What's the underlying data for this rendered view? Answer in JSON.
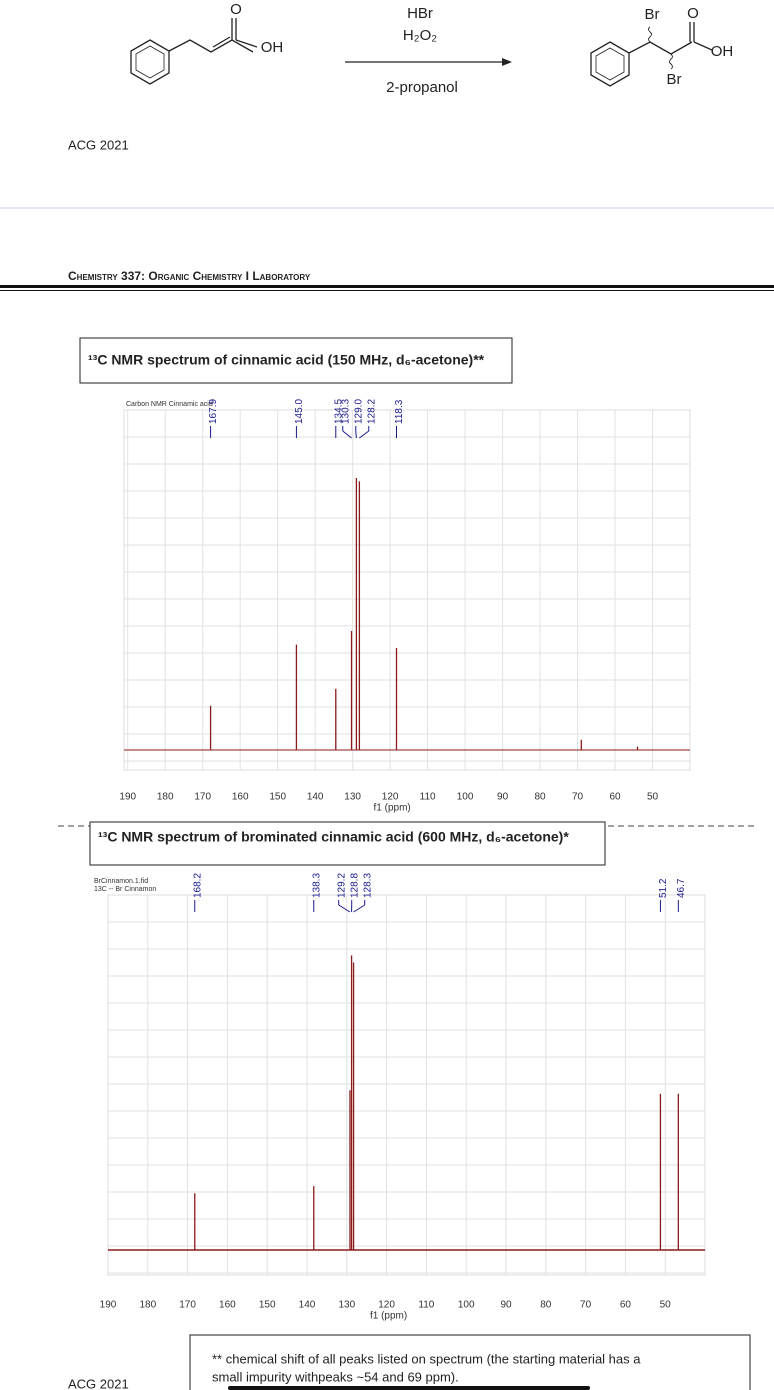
{
  "scheme": {
    "reactant_o": "O",
    "reactant_oh": "OH",
    "reagent_1": "HBr",
    "reagent_2": "H₂O₂",
    "solvent": "2-propanol",
    "product_br_1": "Br",
    "product_o": "O",
    "product_oh": "OH",
    "product_br_2": "Br"
  },
  "header": {
    "stamp": "ACG 2021",
    "course": "Chemistry 337: Organic Chemistry I Laboratory"
  },
  "spectra": [
    {
      "caption": "¹³C NMR spectrum of cinnamic acid (150 MHz, d₆-acetone)**",
      "name_lines": [
        "Carbon NMR Cinnamic acid"
      ],
      "xlabel": "f1 (ppm)",
      "xlim": [
        191,
        40
      ],
      "ylim": [
        0,
        100
      ],
      "xticks": [
        190,
        180,
        170,
        160,
        150,
        140,
        130,
        120,
        110,
        100,
        90,
        80,
        70,
        60,
        50
      ],
      "color": "#8b1a1a",
      "peaks": [
        {
          "ppm": 167.9,
          "label": "167.9",
          "height": 13
        },
        {
          "ppm": 145.0,
          "label": "145.0",
          "height": 31
        },
        {
          "ppm": 134.5,
          "label": "134.5",
          "height": 18
        },
        {
          "ppm": 130.3,
          "label": "130.3",
          "height": 35
        },
        {
          "ppm": 129.0,
          "label": "129.0",
          "height": 80
        },
        {
          "ppm": 128.2,
          "label": "128.2",
          "height": 79
        },
        {
          "ppm": 118.3,
          "label": "118.3",
          "height": 30
        }
      ],
      "impurities": [
        {
          "ppm": 69,
          "height": 3
        },
        {
          "ppm": 54,
          "height": 1
        }
      ]
    },
    {
      "caption": "¹³C NMR spectrum of brominated cinnamic acid (600 MHz, d₆-acetone)*",
      "name_lines": [
        "BrCinnamon.1.fid",
        "13C -- Br Cinnamon"
      ],
      "xlabel": "f1 (ppm)",
      "xlim": [
        190,
        40
      ],
      "ylim": [
        0,
        100
      ],
      "xticks": [
        190,
        180,
        170,
        160,
        150,
        140,
        130,
        120,
        110,
        100,
        90,
        80,
        70,
        60,
        50
      ],
      "color": "#8b1a1a",
      "peaks": [
        {
          "ppm": 168.2,
          "label": "168.2",
          "height": 16
        },
        {
          "ppm": 138.3,
          "label": "138.3",
          "height": 18
        },
        {
          "ppm": 129.2,
          "label": "129.2",
          "height": 45
        },
        {
          "ppm": 128.8,
          "label": "128.8",
          "height": 83
        },
        {
          "ppm": 128.3,
          "label": "128.3",
          "height": 81
        },
        {
          "ppm": 51.2,
          "label": "51.2",
          "height": 44
        },
        {
          "ppm": 46.7,
          "label": "46.7",
          "height": 44
        }
      ],
      "impurities": []
    }
  ],
  "note": {
    "lines": [
      "** chemical shift of all peaks listed on spectrum (the starting material has a",
      "small impurity withpeaks ~54 and 69 ppm)."
    ]
  },
  "footer": {
    "stamp": "ACG 2021"
  }
}
